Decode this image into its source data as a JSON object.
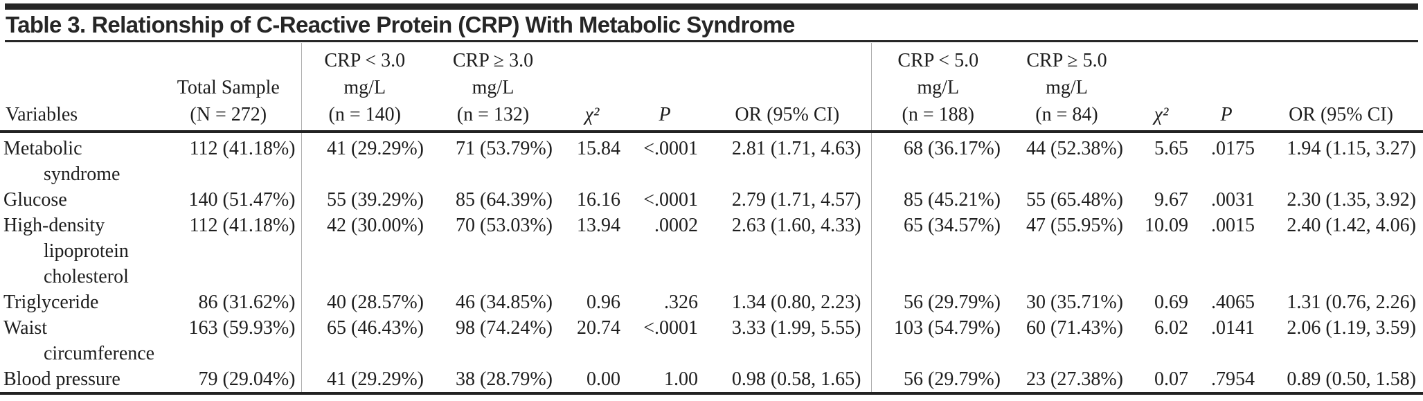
{
  "title": "Table 3. Relationship of C-Reactive Protein (CRP) With Metabolic Syndrome",
  "header": {
    "variables": "Variables",
    "total": {
      "line1": "Total Sample",
      "line2": "(N = 272)"
    },
    "crp3_lt": {
      "line1": "CRP < 3.0",
      "line2": "mg/L",
      "line3": "(n = 140)"
    },
    "crp3_ge": {
      "line1": "CRP ≥ 3.0",
      "line2": "mg/L",
      "line3": "(n = 132)"
    },
    "chi_sq_1": "χ²",
    "p_1": "P",
    "or_1": "OR (95% CI)",
    "crp5_lt": {
      "line1": "CRP < 5.0",
      "line2": "mg/L",
      "line3": "(n = 188)"
    },
    "crp5_ge": {
      "line1": "CRP ≥ 5.0",
      "line2": "mg/L",
      "line3": "(n = 84)"
    },
    "chi_sq_2": "χ²",
    "p_2": "P",
    "or_2": "OR (95% CI)"
  },
  "rows": [
    {
      "variable": "Metabolic syndrome",
      "total": "112 (41.18%)",
      "crp3_lt": "41 (29.29%)",
      "crp3_ge": "71 (53.79%)",
      "chi1": "15.84",
      "p1": "<.0001",
      "or1": "2.81 (1.71, 4.63)",
      "crp5_lt": "68 (36.17%)",
      "crp5_ge": "44 (52.38%)",
      "chi2": "5.65",
      "p2": ".0175",
      "or2": "1.94 (1.15, 3.27)"
    },
    {
      "variable": "Glucose",
      "total": "140 (51.47%)",
      "crp3_lt": "55 (39.29%)",
      "crp3_ge": "85 (64.39%)",
      "chi1": "16.16",
      "p1": "<.0001",
      "or1": "2.79 (1.71, 4.57)",
      "crp5_lt": "85 (45.21%)",
      "crp5_ge": "55 (65.48%)",
      "chi2": "9.67",
      "p2": ".0031",
      "or2": "2.30 (1.35, 3.92)"
    },
    {
      "variable": "High-density lipoprotein cholesterol",
      "total": "112 (41.18%)",
      "crp3_lt": "42 (30.00%)",
      "crp3_ge": "70 (53.03%)",
      "chi1": "13.94",
      "p1": ".0002",
      "or1": "2.63 (1.60, 4.33)",
      "crp5_lt": "65 (34.57%)",
      "crp5_ge": "47 (55.95%)",
      "chi2": "10.09",
      "p2": ".0015",
      "or2": "2.40 (1.42, 4.06)"
    },
    {
      "variable": "Triglyceride",
      "total": "86 (31.62%)",
      "crp3_lt": "40 (28.57%)",
      "crp3_ge": "46 (34.85%)",
      "chi1": "0.96",
      "p1": ".326",
      "or1": "1.34 (0.80, 2.23)",
      "crp5_lt": "56 (29.79%)",
      "crp5_ge": "30 (35.71%)",
      "chi2": "0.69",
      "p2": ".4065",
      "or2": "1.31 (0.76, 2.26)"
    },
    {
      "variable": "Waist circumference",
      "total": "163 (59.93%)",
      "crp3_lt": "65 (46.43%)",
      "crp3_ge": "98 (74.24%)",
      "chi1": "20.74",
      "p1": "<.0001",
      "or1": "3.33 (1.99, 5.55)",
      "crp5_lt": "103 (54.79%)",
      "crp5_ge": "60 (71.43%)",
      "chi2": "6.02",
      "p2": ".0141",
      "or2": "2.06 (1.19, 3.59)"
    },
    {
      "variable": "Blood pressure",
      "total": "79 (29.04%)",
      "crp3_lt": "41 (29.29%)",
      "crp3_ge": "38 (28.79%)",
      "chi1": "0.00",
      "p1": "1.00",
      "or1": "0.98 (0.58, 1.65)",
      "crp5_lt": "56 (29.79%)",
      "crp5_ge": "23 (27.38%)",
      "chi2": "0.07",
      "p2": ".7954",
      "or2": "0.89 (0.50, 1.58)"
    }
  ]
}
